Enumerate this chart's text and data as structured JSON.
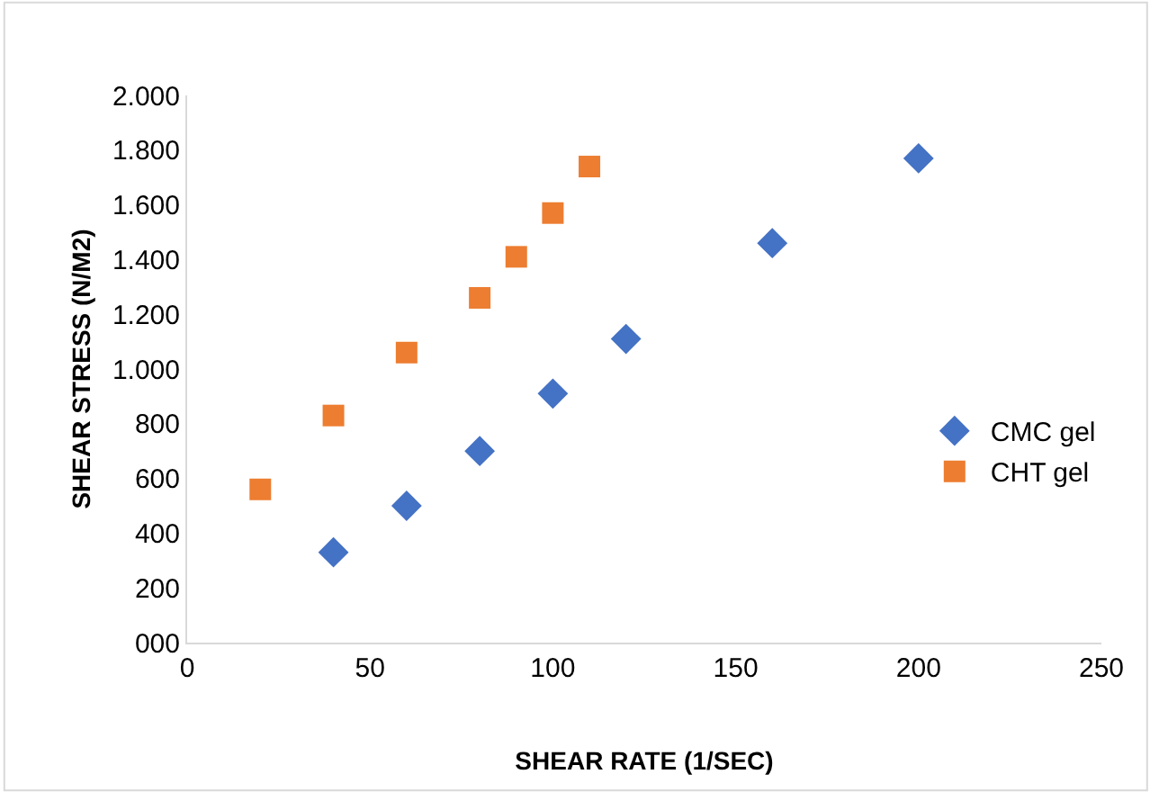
{
  "chart_data": {
    "type": "scatter",
    "xlabel": "SHEAR RATE (1/SEC)",
    "ylabel": "SHEAR STRESS (N/M2)",
    "series": [
      {
        "name": "CMC gel",
        "color": "#4472c4",
        "marker": "diamond",
        "x": [
          40,
          60,
          80,
          100,
          120,
          160,
          200
        ],
        "values": [
          330,
          500,
          700,
          910,
          1110,
          1460,
          1770
        ]
      },
      {
        "name": "CHT gel",
        "color": "#ed7d31",
        "marker": "square",
        "x": [
          20,
          40,
          60,
          80,
          90,
          100,
          110
        ],
        "values": [
          560,
          830,
          1060,
          1260,
          1410,
          1570,
          1740
        ]
      }
    ],
    "xlim": [
      0,
      250
    ],
    "xticks": [
      0,
      50,
      100,
      150,
      200,
      250
    ],
    "ylim": [
      0,
      2000
    ],
    "yticks": [
      {
        "value": 0,
        "label": "000"
      },
      200,
      400,
      600,
      800,
      {
        "value": 1000,
        "label": "1.000"
      },
      {
        "value": 1200,
        "label": "1.200"
      },
      {
        "value": 1400,
        "label": "1.400"
      },
      {
        "value": 1600,
        "label": "1.600"
      },
      {
        "value": 1800,
        "label": "1.800"
      },
      {
        "value": 2000,
        "label": "2.000"
      }
    ],
    "grid": false,
    "legend": "right"
  }
}
